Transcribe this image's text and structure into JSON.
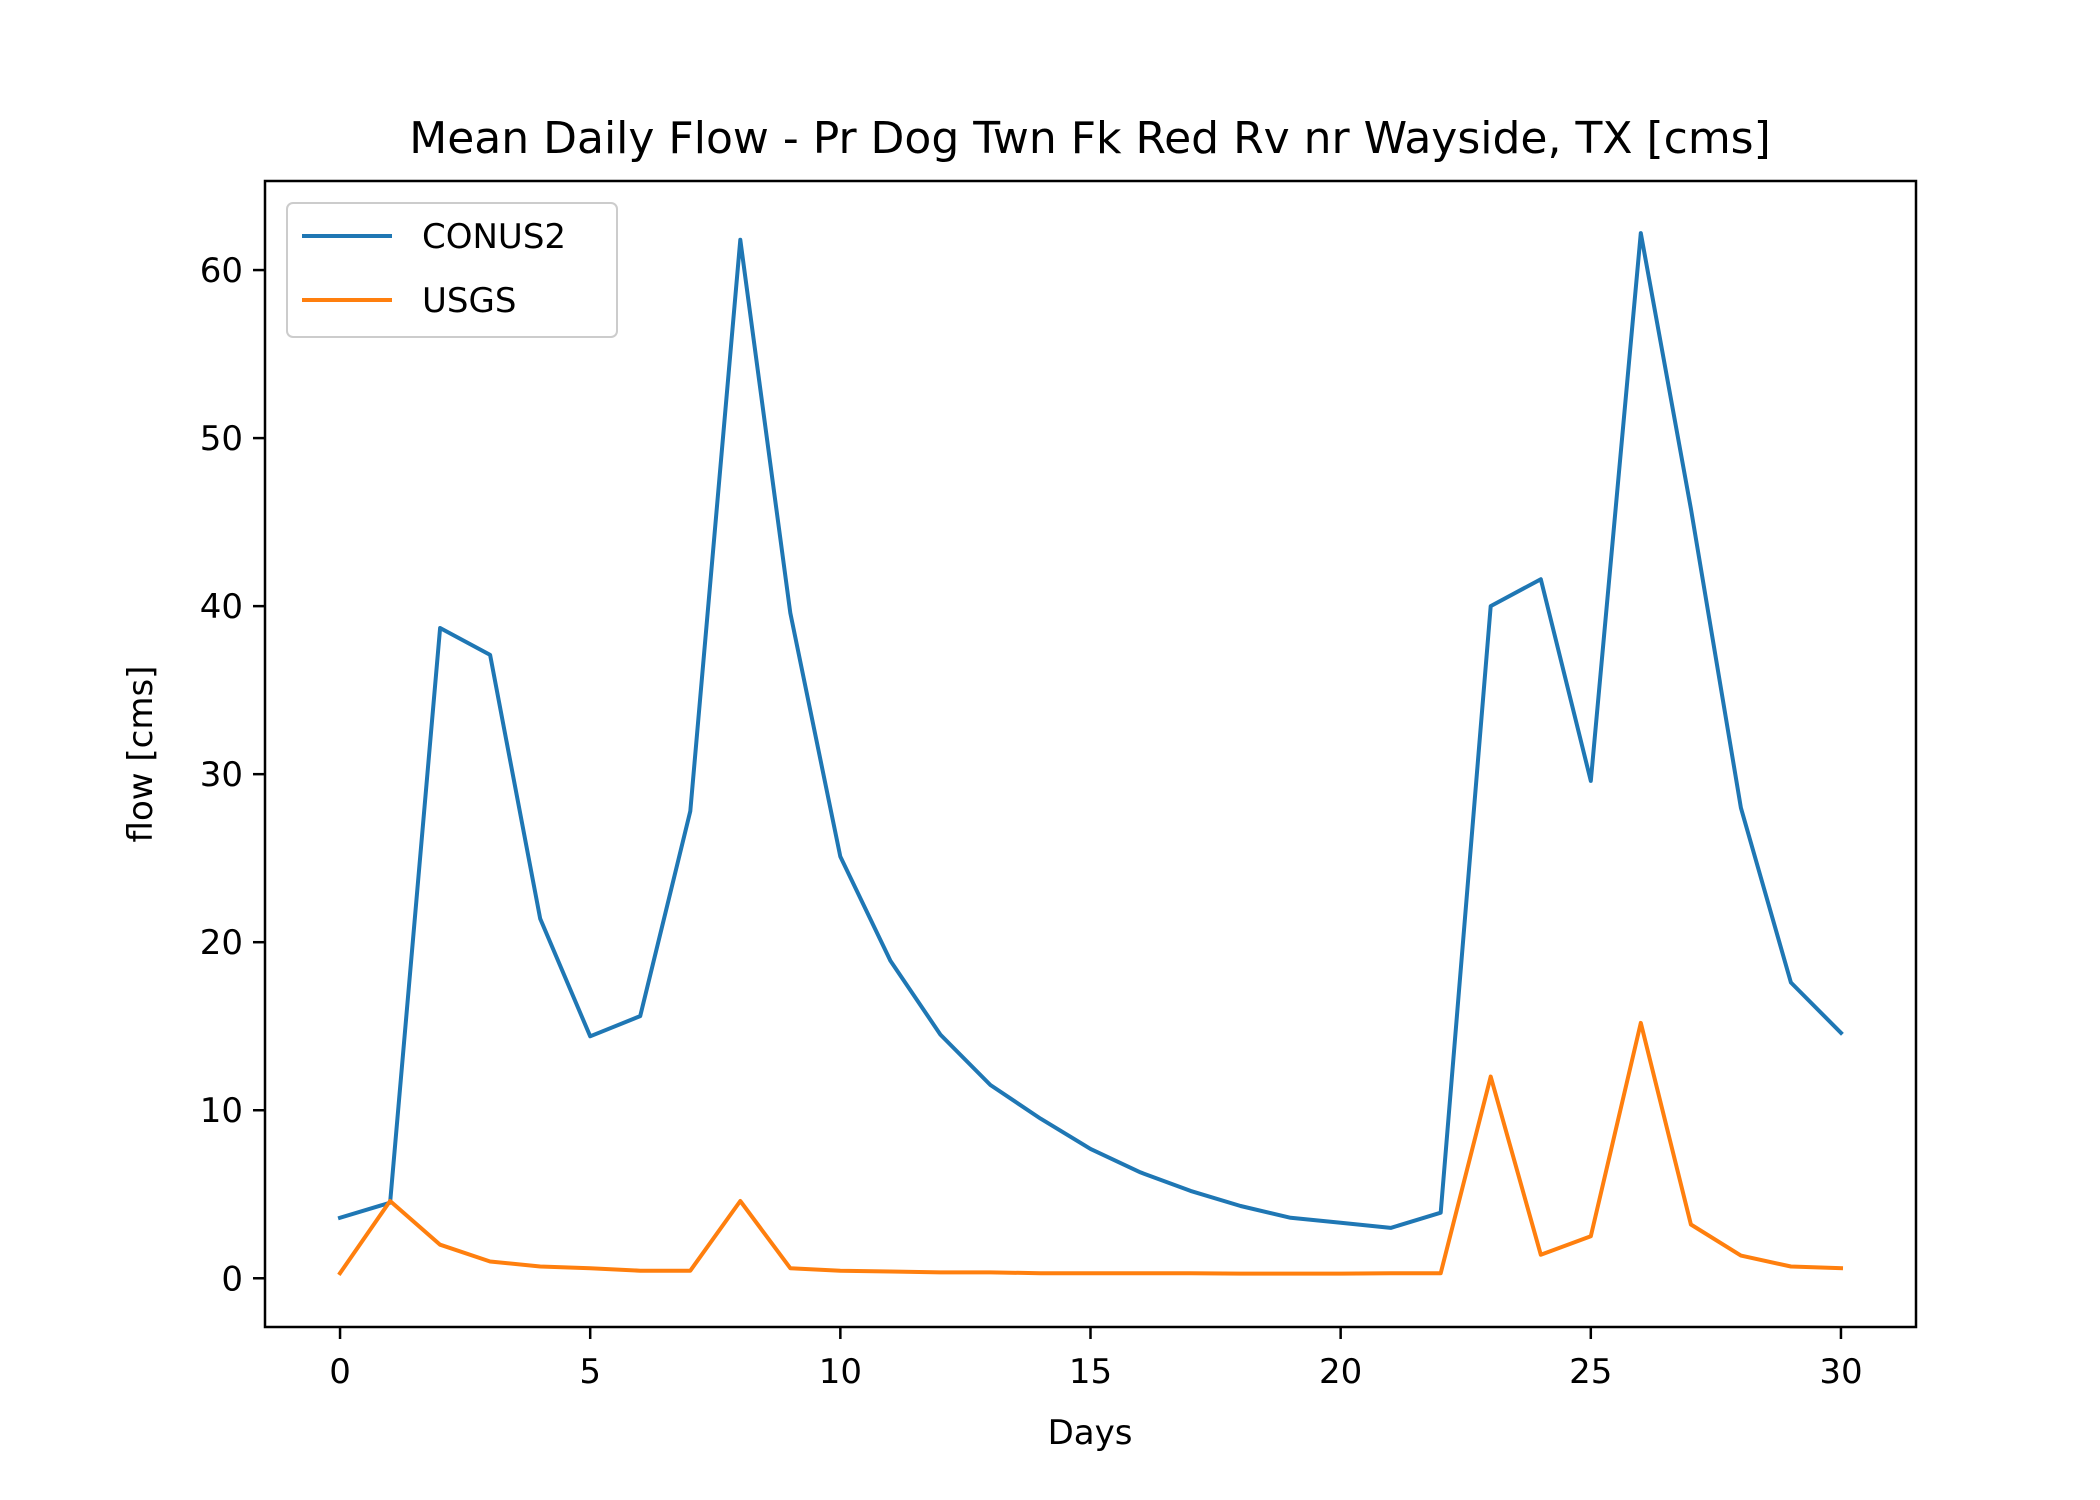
{
  "chart_data": {
    "type": "line",
    "title": "Mean Daily Flow - Pr Dog Twn Fk Red Rv nr Wayside, TX [cms]",
    "xlabel": "Days",
    "ylabel": "flow [cms]",
    "xlim": [
      -1.5,
      31.5
    ],
    "ylim": [
      -2.9,
      65.3
    ],
    "xticks": [
      0,
      5,
      10,
      15,
      20,
      25,
      30
    ],
    "yticks": [
      0,
      10,
      20,
      30,
      40,
      50,
      60
    ],
    "grid": false,
    "legend_position": "upper-left",
    "x": [
      0,
      1,
      2,
      3,
      4,
      5,
      6,
      7,
      8,
      9,
      10,
      11,
      12,
      13,
      14,
      15,
      16,
      17,
      18,
      19,
      20,
      21,
      22,
      23,
      24,
      25,
      26,
      27,
      28,
      29,
      30
    ],
    "series": [
      {
        "name": "CONUS2",
        "color": "#1f77b4",
        "values": [
          3.6,
          4.5,
          38.7,
          37.1,
          21.4,
          14.4,
          15.6,
          27.8,
          61.8,
          39.6,
          25.1,
          18.9,
          14.5,
          11.5,
          9.5,
          7.7,
          6.3,
          5.2,
          4.3,
          3.6,
          3.3,
          3.0,
          3.9,
          40.0,
          41.6,
          29.6,
          62.2,
          45.8,
          28.0,
          17.6,
          14.6
        ]
      },
      {
        "name": "USGS",
        "color": "#ff7f0e",
        "values": [
          0.3,
          4.6,
          2.0,
          1.0,
          0.7,
          0.6,
          0.45,
          0.45,
          4.6,
          0.6,
          0.45,
          0.4,
          0.35,
          0.35,
          0.3,
          0.3,
          0.3,
          0.3,
          0.28,
          0.28,
          0.28,
          0.3,
          0.3,
          12.0,
          1.4,
          2.5,
          15.2,
          3.2,
          1.35,
          0.7,
          0.6
        ]
      }
    ]
  }
}
